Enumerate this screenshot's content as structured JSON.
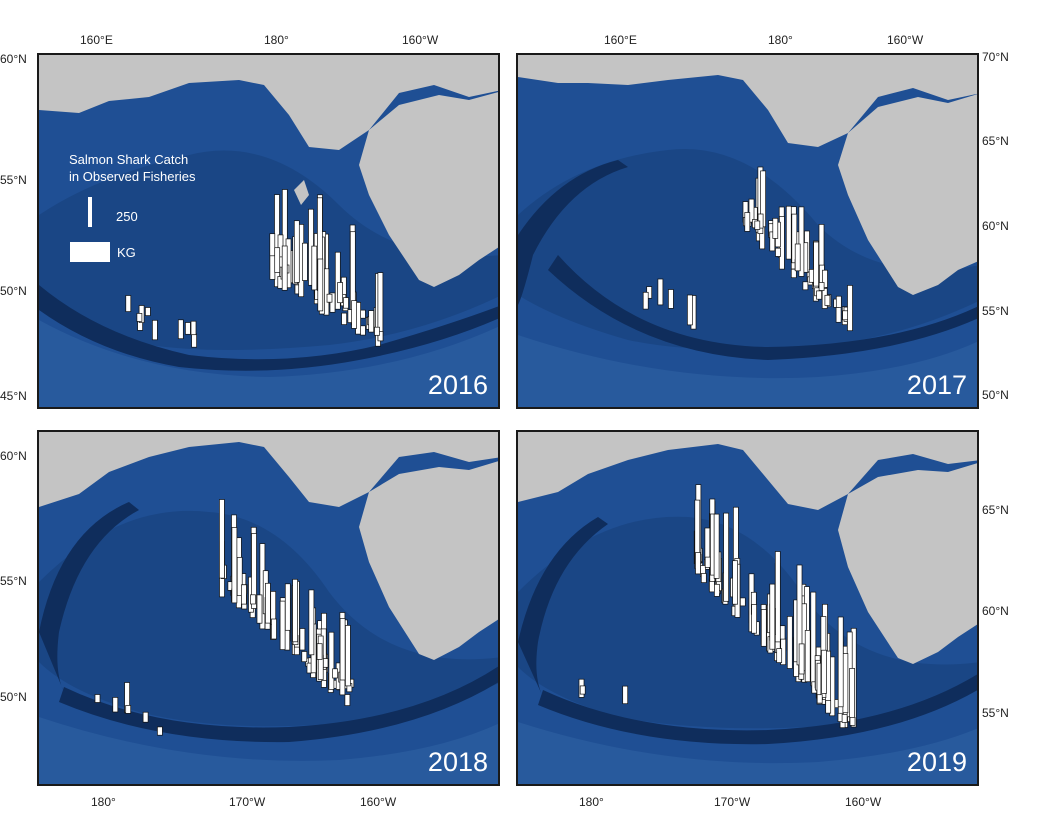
{
  "panels": [
    {
      "year": "2016"
    },
    {
      "year": "2017"
    },
    {
      "year": "2018"
    },
    {
      "year": "2019"
    }
  ],
  "axes": {
    "top_left_lon": [
      "160°E",
      "180°",
      "160°W"
    ],
    "top_right_lon": [
      "160°E",
      "180°",
      "160°W"
    ],
    "bottom_left_lon": [
      "180°",
      "170°W",
      "160°W"
    ],
    "bottom_right_lon": [
      "180°",
      "170°W",
      "160°W"
    ],
    "top_left_lat": [
      "60°N",
      "55°N",
      "50°N",
      "45°N"
    ],
    "top_right_lat": [
      "70°N",
      "65°N",
      "60°N",
      "55°N",
      "50°N"
    ],
    "bottom_left_lat": [
      "60°N",
      "55°N",
      "50°N"
    ],
    "bottom_right_lat": [
      "65°N",
      "60°N",
      "55°N"
    ]
  },
  "legend": {
    "title_line1": "Salmon Shark Catch",
    "title_line2": "in Observed Fisheries",
    "scale_value": "250",
    "unit": "KG"
  },
  "colors": {
    "ocean": "#1f4f94",
    "land": "#c4c4c4",
    "bars": "#ffffff",
    "bar_outline": "#111111"
  }
}
